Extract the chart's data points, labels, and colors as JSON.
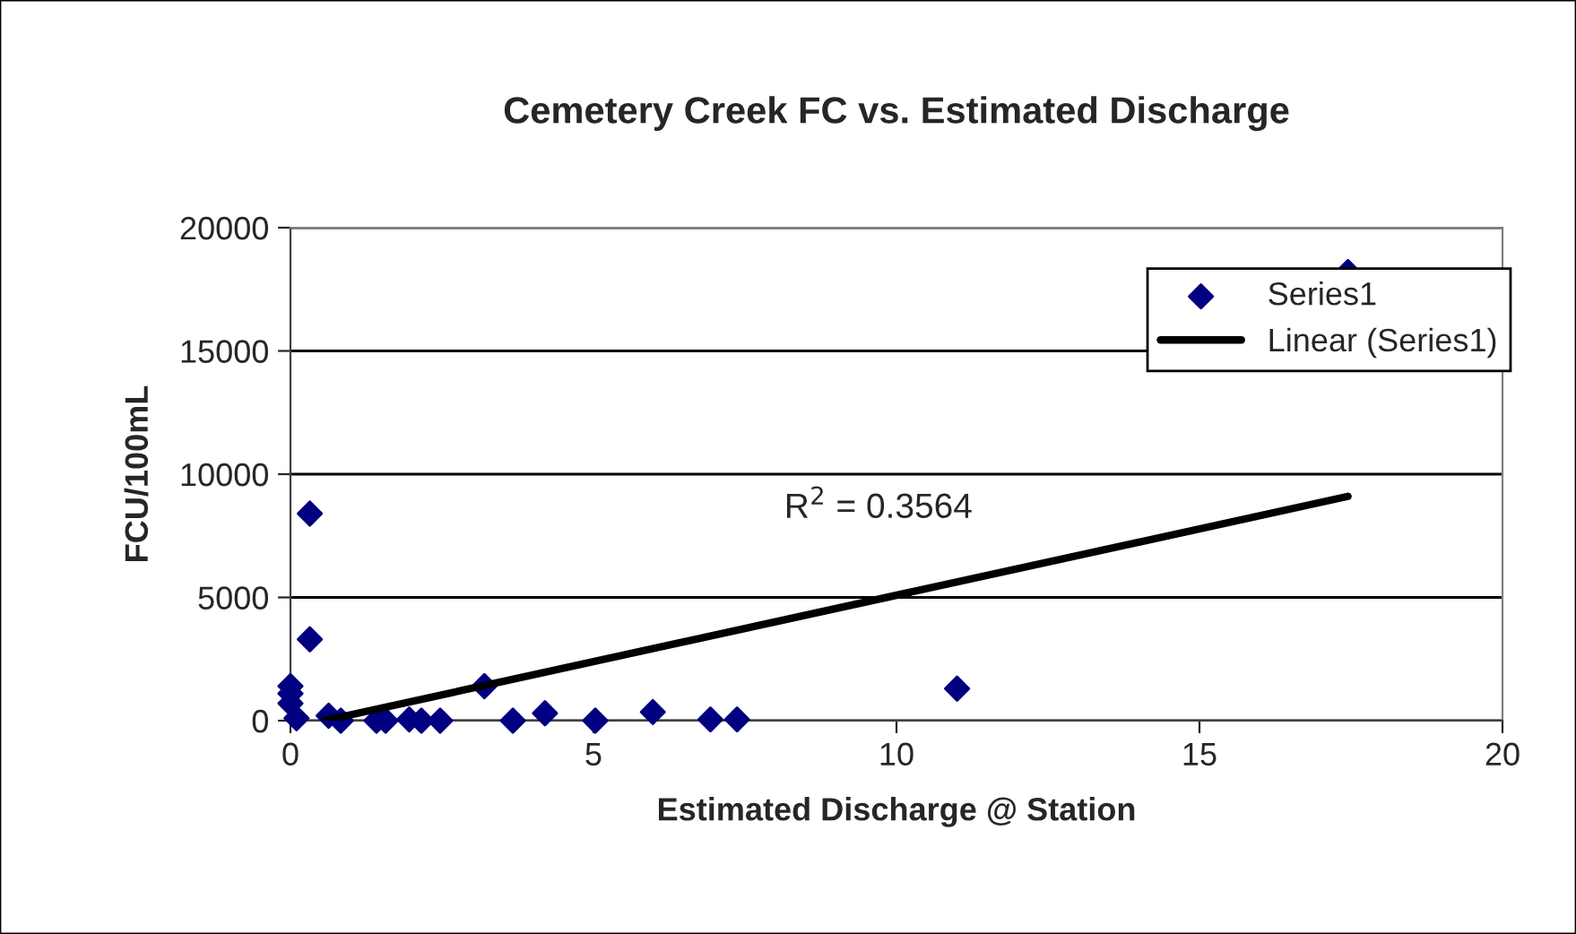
{
  "chart_data": {
    "type": "scatter",
    "title": "Cemetery Creek FC vs. Estimated Discharge",
    "xlabel": "Estimated Discharge @ Station",
    "ylabel": "FCU/100mL",
    "series": [
      {
        "name": "Series1",
        "color": "#000080",
        "marker": "diamond",
        "x": [
          0,
          0,
          0,
          0.1,
          0.32,
          0.32,
          0.63,
          0.83,
          1.42,
          1.57,
          1.96,
          2.16,
          2.47,
          3.2,
          3.67,
          4.2,
          5.03,
          5.98,
          6.93,
          7.37,
          11.0,
          17.45
        ],
        "values": [
          1400,
          1100,
          700,
          100,
          8400,
          3300,
          200,
          0,
          0,
          0,
          50,
          0,
          0,
          1400,
          0,
          300,
          0,
          350,
          50,
          50,
          1300,
          18200
        ]
      },
      {
        "name": "Linear (Series1)",
        "type": "line",
        "color": "#000000",
        "marker": "none",
        "line_style": "solid",
        "x": [
          0.55,
          17.45
        ],
        "values": [
          0,
          9100
        ]
      }
    ],
    "annotations": [
      "R$^{2}$ = 0.3564"
    ],
    "xlim": [
      0,
      20
    ],
    "xticks": [
      0,
      5,
      10,
      15,
      20
    ],
    "ylim": [
      0,
      20000
    ],
    "yticks": [
      0,
      5000,
      10000,
      15000,
      20000
    ],
    "grid": "y",
    "legend": "top right"
  }
}
